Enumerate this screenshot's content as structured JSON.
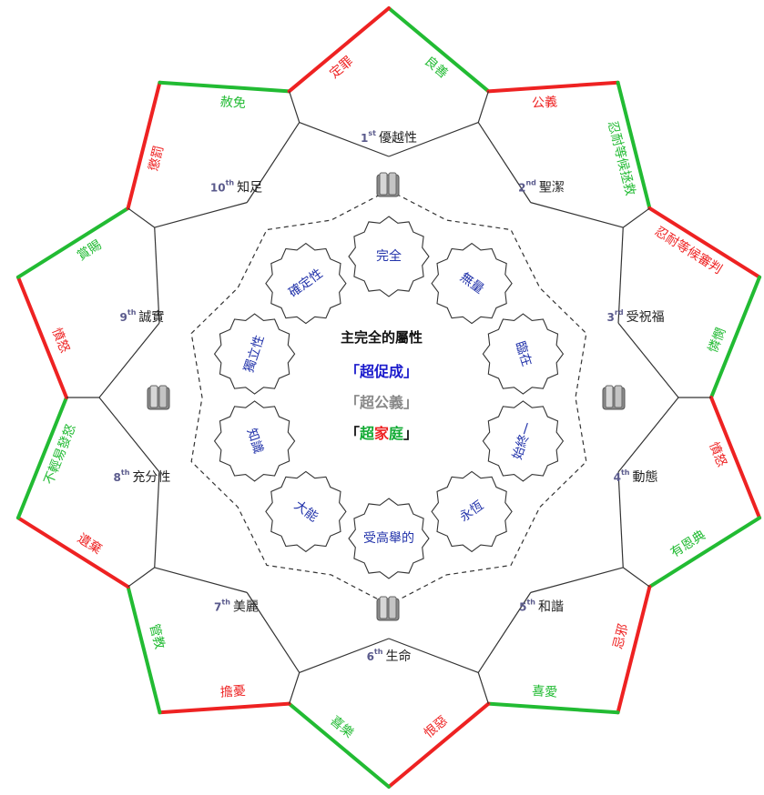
{
  "diagram": {
    "center": {
      "title": "主完全的屬性",
      "line1": {
        "open": "「",
        "text": "超促成",
        "close": "」"
      },
      "line2": {
        "open": "「",
        "text": "超公義",
        "close": "」"
      },
      "line3": {
        "open": "「",
        "c1": "超",
        "c2": "家",
        "c3": "庭",
        "close": "」"
      }
    },
    "inner_attributes": [
      "完全",
      "無量",
      "臨在",
      "始終一",
      "永恆",
      "受高舉的",
      "大能",
      "知識",
      "獨立性",
      "確定性"
    ],
    "sectors": [
      {
        "num": "1",
        "sup": "st",
        "label": "優越性"
      },
      {
        "num": "2",
        "sup": "nd",
        "label": "聖潔"
      },
      {
        "num": "3",
        "sup": "rd",
        "label": "受祝福"
      },
      {
        "num": "4",
        "sup": "th",
        "label": "動態"
      },
      {
        "num": "5",
        "sup": "th",
        "label": "和諧"
      },
      {
        "num": "6",
        "sup": "th",
        "label": "生命"
      },
      {
        "num": "7",
        "sup": "th",
        "label": "美麗"
      },
      {
        "num": "8",
        "sup": "th",
        "label": "充分性"
      },
      {
        "num": "9",
        "sup": "th",
        "label": "誠實"
      },
      {
        "num": "10",
        "sup": "th",
        "label": "知足"
      }
    ],
    "edge_labels": [
      {
        "text": "良善",
        "color": "green"
      },
      {
        "text": "公義",
        "color": "red"
      },
      {
        "text": "忍耐等候拯救",
        "color": "green"
      },
      {
        "text": "忍耐等候審判",
        "color": "red"
      },
      {
        "text": "憐憫",
        "color": "green"
      },
      {
        "text": "憤怒",
        "color": "red"
      },
      {
        "text": "有恩典",
        "color": "green"
      },
      {
        "text": "忌邪",
        "color": "red"
      },
      {
        "text": "喜愛",
        "color": "green"
      },
      {
        "text": "恨惡",
        "color": "red"
      },
      {
        "text": "喜樂",
        "color": "green"
      },
      {
        "text": "擔憂",
        "color": "red"
      },
      {
        "text": "管教",
        "color": "green"
      },
      {
        "text": "遺棄",
        "color": "red"
      },
      {
        "text": "不輕易發怒",
        "color": "green"
      },
      {
        "text": "憤怒",
        "color": "red"
      },
      {
        "text": "賞賜",
        "color": "green"
      },
      {
        "text": "懲罰",
        "color": "red"
      },
      {
        "text": "赦免",
        "color": "green"
      },
      {
        "text": "定罪",
        "color": "red"
      }
    ],
    "colors": {
      "green": "#22bb33",
      "red": "#ee2222",
      "line": "#333333",
      "inner": "#2233aa"
    }
  }
}
